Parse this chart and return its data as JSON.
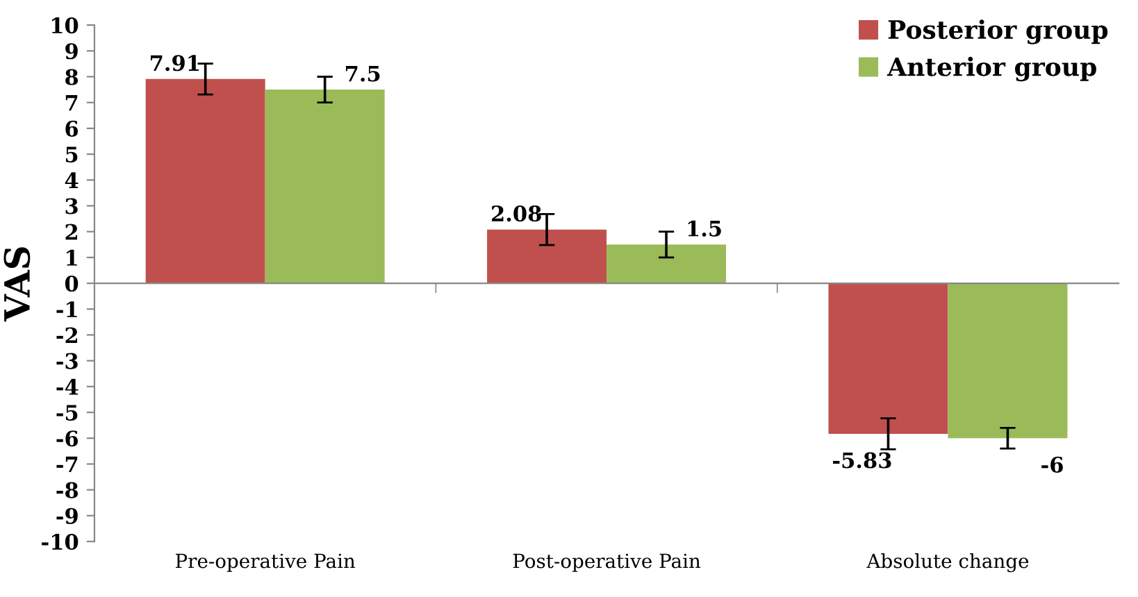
{
  "chart_data": {
    "type": "bar",
    "ylabel": "VAS",
    "categories": [
      "Pre-operative Pain",
      "Post-operative Pain",
      "Absolute change"
    ],
    "series": [
      {
        "name": "Posterior group",
        "color": "#c0504d",
        "values": [
          7.91,
          2.08,
          -5.83
        ],
        "errors": [
          0.6,
          0.6,
          0.6
        ]
      },
      {
        "name": "Anterior group",
        "color": "#9bbb59",
        "values": [
          7.5,
          1.5,
          -6
        ],
        "errors": [
          0.5,
          0.5,
          0.4
        ]
      }
    ],
    "ylim": [
      -10,
      10
    ],
    "yticks": [
      {
        "value": -10,
        "label": "-10"
      },
      {
        "value": -9,
        "label": "-9"
      },
      {
        "value": -8,
        "label": "-8"
      },
      {
        "value": -7,
        "label": "-7"
      },
      {
        "value": -6,
        "label": "-6"
      },
      {
        "value": -5,
        "label": "-5"
      },
      {
        "value": -4,
        "label": "-4"
      },
      {
        "value": -3,
        "label": "-3"
      },
      {
        "value": -2,
        "label": "-2"
      },
      {
        "value": -1,
        "label": "-1"
      },
      0,
      1,
      2,
      3,
      4,
      5,
      6,
      7,
      8,
      9,
      10
    ],
    "data_labels": true,
    "legend": "top right"
  }
}
